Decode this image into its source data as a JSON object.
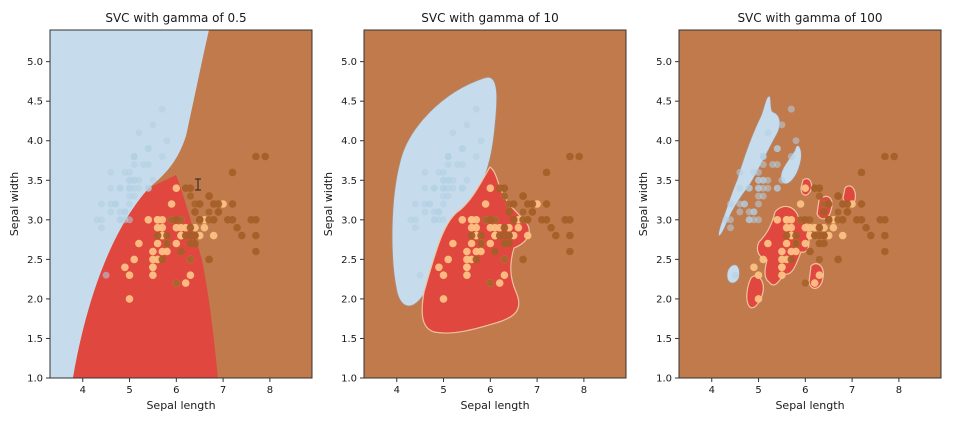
{
  "colors": {
    "setosa_region": "#c6dcec",
    "versicolor_region": "#e0483f",
    "virginica_region": "#c07a4c",
    "setosa_point": "#b3cfe3",
    "versicolor_point": "#fcc183",
    "virginica_point": "#a55f28"
  },
  "chart_data": [
    {
      "type": "scatter",
      "title": "SVC with gamma of 0.5",
      "xlabel": "Sepal length",
      "ylabel": "Sepal width",
      "xlim": [
        3.3,
        8.9
      ],
      "ylim": [
        1.0,
        5.4
      ],
      "xticks": [
        "4",
        "5",
        "6",
        "7",
        "8"
      ],
      "yticks": [
        "1.0",
        "1.5",
        "2.0",
        "2.5",
        "3.0",
        "3.5",
        "4.0",
        "4.5",
        "5.0"
      ],
      "grid": false
    },
    {
      "type": "scatter",
      "title": "SVC with gamma of 10",
      "xlabel": "Sepal length",
      "ylabel": "Sepal width",
      "xlim": [
        3.3,
        8.9
      ],
      "ylim": [
        1.0,
        5.4
      ],
      "xticks": [
        "4",
        "5",
        "6",
        "7",
        "8"
      ],
      "yticks": [
        "1.0",
        "1.5",
        "2.0",
        "2.5",
        "3.0",
        "3.5",
        "4.0",
        "4.5",
        "5.0"
      ],
      "grid": false
    },
    {
      "type": "scatter",
      "title": "SVC with gamma of 100",
      "xlabel": "Sepal length",
      "ylabel": "Sepal width",
      "xlim": [
        3.3,
        8.9
      ],
      "ylim": [
        1.0,
        5.4
      ],
      "xticks": [
        "4",
        "5",
        "6",
        "7",
        "8"
      ],
      "yticks": [
        "1.0",
        "1.5",
        "2.0",
        "2.5",
        "3.0",
        "3.5",
        "4.0",
        "4.5",
        "5.0"
      ],
      "grid": false
    }
  ],
  "scatter_points": {
    "setosa": [
      [
        5.1,
        3.5
      ],
      [
        4.9,
        3.0
      ],
      [
        4.7,
        3.2
      ],
      [
        4.6,
        3.1
      ],
      [
        5.0,
        3.6
      ],
      [
        5.4,
        3.9
      ],
      [
        4.6,
        3.4
      ],
      [
        5.0,
        3.4
      ],
      [
        4.4,
        2.9
      ],
      [
        4.9,
        3.1
      ],
      [
        5.4,
        3.7
      ],
      [
        4.8,
        3.4
      ],
      [
        4.8,
        3.0
      ],
      [
        4.3,
        3.0
      ],
      [
        5.8,
        4.0
      ],
      [
        5.7,
        4.4
      ],
      [
        5.4,
        3.9
      ],
      [
        5.1,
        3.5
      ],
      [
        5.7,
        3.8
      ],
      [
        5.1,
        3.8
      ],
      [
        5.4,
        3.4
      ],
      [
        5.1,
        3.7
      ],
      [
        4.6,
        3.6
      ],
      [
        5.1,
        3.3
      ],
      [
        4.8,
        3.4
      ],
      [
        5.0,
        3.0
      ],
      [
        5.0,
        3.4
      ],
      [
        5.2,
        3.5
      ],
      [
        5.2,
        3.4
      ],
      [
        4.7,
        3.2
      ],
      [
        4.8,
        3.1
      ],
      [
        5.4,
        3.4
      ],
      [
        5.2,
        4.1
      ],
      [
        5.5,
        4.2
      ],
      [
        4.9,
        3.1
      ],
      [
        5.0,
        3.2
      ],
      [
        5.5,
        3.5
      ],
      [
        4.9,
        3.6
      ],
      [
        4.4,
        3.0
      ],
      [
        5.1,
        3.4
      ],
      [
        5.0,
        3.5
      ],
      [
        4.5,
        2.3
      ],
      [
        4.4,
        3.2
      ],
      [
        5.0,
        3.5
      ],
      [
        5.1,
        3.8
      ],
      [
        4.8,
        3.0
      ],
      [
        5.1,
        3.8
      ],
      [
        4.6,
        3.2
      ],
      [
        5.3,
        3.7
      ],
      [
        5.0,
        3.3
      ]
    ],
    "versicolor": [
      [
        7.0,
        3.2
      ],
      [
        6.4,
        3.2
      ],
      [
        6.9,
        3.1
      ],
      [
        5.5,
        2.3
      ],
      [
        6.5,
        2.8
      ],
      [
        5.7,
        2.8
      ],
      [
        6.3,
        3.3
      ],
      [
        4.9,
        2.4
      ],
      [
        6.6,
        2.9
      ],
      [
        5.2,
        2.7
      ],
      [
        5.0,
        2.0
      ],
      [
        5.9,
        3.0
      ],
      [
        6.0,
        2.2
      ],
      [
        6.1,
        2.9
      ],
      [
        5.6,
        2.9
      ],
      [
        6.7,
        3.1
      ],
      [
        5.6,
        3.0
      ],
      [
        5.8,
        2.7
      ],
      [
        6.2,
        2.2
      ],
      [
        5.6,
        2.5
      ],
      [
        5.9,
        3.2
      ],
      [
        6.1,
        2.8
      ],
      [
        6.3,
        2.5
      ],
      [
        6.1,
        2.8
      ],
      [
        6.4,
        2.9
      ],
      [
        6.6,
        3.0
      ],
      [
        6.8,
        2.8
      ],
      [
        6.7,
        3.0
      ],
      [
        6.0,
        2.9
      ],
      [
        5.7,
        2.6
      ],
      [
        5.5,
        2.4
      ],
      [
        5.5,
        2.4
      ],
      [
        5.8,
        2.7
      ],
      [
        6.0,
        2.7
      ],
      [
        5.4,
        3.0
      ],
      [
        6.0,
        3.4
      ],
      [
        6.7,
        3.1
      ],
      [
        6.3,
        2.3
      ],
      [
        5.6,
        3.0
      ],
      [
        5.5,
        2.5
      ],
      [
        5.5,
        2.6
      ],
      [
        6.1,
        3.0
      ],
      [
        5.8,
        2.6
      ],
      [
        5.0,
        2.3
      ],
      [
        5.6,
        2.7
      ],
      [
        5.7,
        3.0
      ],
      [
        5.7,
        2.9
      ],
      [
        6.2,
        2.9
      ],
      [
        5.1,
        2.5
      ],
      [
        5.7,
        2.8
      ]
    ],
    "virginica": [
      [
        6.3,
        3.3
      ],
      [
        5.8,
        2.7
      ],
      [
        7.1,
        3.0
      ],
      [
        6.3,
        2.9
      ],
      [
        6.5,
        3.0
      ],
      [
        7.6,
        3.0
      ],
      [
        7.3,
        2.9
      ],
      [
        6.7,
        2.5
      ],
      [
        7.2,
        3.6
      ],
      [
        6.5,
        3.2
      ],
      [
        6.4,
        2.7
      ],
      [
        6.8,
        3.0
      ],
      [
        5.7,
        2.5
      ],
      [
        5.8,
        2.8
      ],
      [
        6.4,
        3.2
      ],
      [
        6.5,
        3.0
      ],
      [
        7.7,
        3.8
      ],
      [
        7.7,
        2.6
      ],
      [
        6.0,
        2.2
      ],
      [
        6.9,
        3.2
      ],
      [
        5.6,
        2.8
      ],
      [
        7.7,
        2.8
      ],
      [
        6.3,
        2.7
      ],
      [
        6.7,
        3.3
      ],
      [
        7.2,
        3.2
      ],
      [
        6.2,
        2.8
      ],
      [
        6.1,
        3.0
      ],
      [
        6.4,
        2.8
      ],
      [
        7.2,
        3.0
      ],
      [
        7.4,
        2.8
      ],
      [
        7.9,
        3.8
      ],
      [
        6.4,
        2.8
      ],
      [
        6.3,
        2.8
      ],
      [
        6.1,
        2.6
      ],
      [
        7.7,
        3.0
      ],
      [
        6.3,
        3.4
      ],
      [
        6.4,
        3.1
      ],
      [
        6.0,
        3.0
      ],
      [
        6.9,
        3.1
      ],
      [
        6.7,
        3.1
      ],
      [
        6.9,
        3.1
      ],
      [
        5.8,
        2.7
      ],
      [
        6.8,
        3.2
      ],
      [
        6.7,
        3.3
      ],
      [
        6.7,
        3.0
      ],
      [
        6.3,
        2.5
      ],
      [
        6.5,
        3.0
      ],
      [
        6.2,
        3.4
      ],
      [
        5.9,
        3.0
      ]
    ]
  }
}
